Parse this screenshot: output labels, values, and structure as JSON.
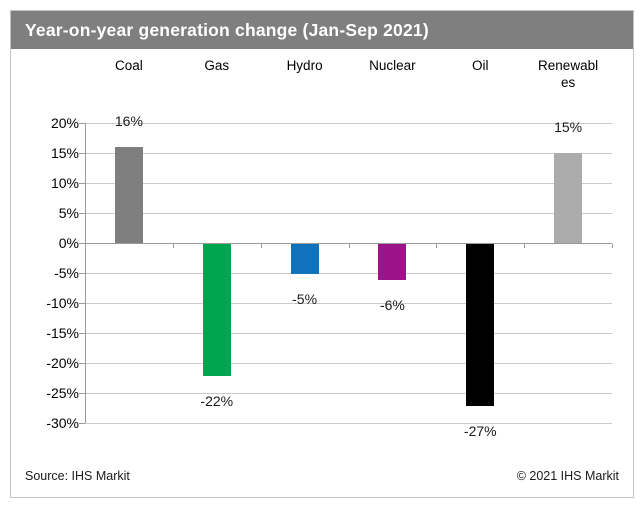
{
  "title": "Year-on-year generation change (Jan-Sep 2021)",
  "footer": {
    "source": "Source: IHS Markit",
    "copyright": "© 2021 IHS Markit"
  },
  "colors": {
    "title_bar_bg": "#7f7f7f",
    "title_text": "#ffffff",
    "gridline": "#c9c9c9",
    "axis": "#9a9a9a",
    "figure_border": "#c3c3c3"
  },
  "chart_data": {
    "type": "bar",
    "title": "Year-on-year generation change (Jan-Sep 2021)",
    "categories": [
      "Coal",
      "Gas",
      "Hydro",
      "Nuclear",
      "Oil",
      "Renewables"
    ],
    "categories_display": [
      "Coal",
      "Gas",
      "Hydro",
      "Nuclear",
      "Oil",
      "Renewabl\nes"
    ],
    "values": [
      16,
      -22,
      -5,
      -6,
      -27,
      15
    ],
    "data_labels": [
      "16%",
      "-22%",
      "-5%",
      "-6%",
      "-27%",
      "15%"
    ],
    "bar_colors": [
      "#7f7f7f",
      "#00a64f",
      "#1072ba",
      "#9c1389",
      "#000000",
      "#ababab"
    ],
    "xlabel": "",
    "ylabel": "",
    "ylim": [
      -30,
      20
    ],
    "ytick_step": 5,
    "yticks": [
      "20%",
      "15%",
      "10%",
      "5%",
      "0%",
      "-5%",
      "-10%",
      "-15%",
      "-20%",
      "-25%",
      "-30%"
    ],
    "ytick_values": [
      20,
      15,
      10,
      5,
      0,
      -5,
      -10,
      -15,
      -20,
      -25,
      -30
    ],
    "grid": true,
    "legend": "none"
  }
}
